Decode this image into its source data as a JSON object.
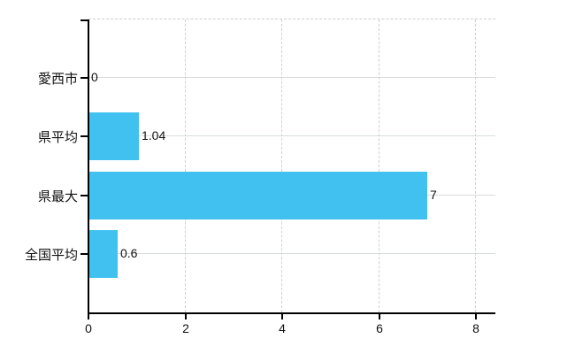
{
  "chart_data": {
    "type": "bar",
    "orientation": "horizontal",
    "title": "",
    "xlabel": "",
    "ylabel": "",
    "categories": [
      "愛西市",
      "県平均",
      "県最大",
      "全国平均"
    ],
    "values": [
      0,
      1.04,
      7,
      0.6
    ],
    "value_labels": [
      "0",
      "1.04",
      "7",
      "0.6"
    ],
    "x_ticks": [
      0,
      2,
      4,
      6,
      8
    ],
    "x_tick_labels": [
      "0",
      "2",
      "4",
      "6",
      "8"
    ],
    "xlim": [
      0,
      8.4
    ],
    "grid": true,
    "legend": false,
    "colors": {
      "bar": "#41C1F0",
      "grid_solid": "#D8DED8",
      "grid_dashed": "#CFCFD6",
      "top_border_dashed": "#CBD1CB",
      "axis": "#000000",
      "text": "#111111",
      "background": "#FFFFFF"
    }
  }
}
